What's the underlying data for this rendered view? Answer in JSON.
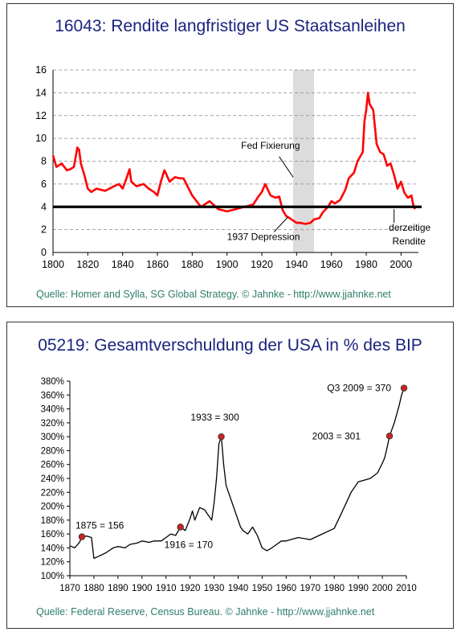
{
  "charts": [
    {
      "type": "line",
      "title": "16043: Rendite langfristiger US Staatsanleihen",
      "source": "Quelle: Homer and Sylla, SG Global Strategy. © Jahnke - http://www.jjahnke.net",
      "xlim": [
        1800,
        2010
      ],
      "ylim": [
        0,
        16
      ],
      "x_ticks": [
        "1800",
        "1820",
        "1840",
        "1860",
        "1880",
        "1900",
        "1920",
        "1940",
        "1960",
        "1980",
        "2000"
      ],
      "y_ticks": [
        "0",
        "2",
        "4",
        "6",
        "8",
        "10",
        "12",
        "14",
        "16"
      ],
      "grid": "dashed-horizontal",
      "line_color": "#ff0000",
      "reference_level": 4,
      "shaded_period": [
        1938,
        1950
      ],
      "annotations": [
        {
          "text": "Fed Fixierung",
          "x": 1925,
          "y": 9.1
        },
        {
          "text": "1937 Depression",
          "x": 1900,
          "y": 1.1
        },
        {
          "text": "derzeitige",
          "x": 1993,
          "y": 1.9
        },
        {
          "text": "Rendite",
          "x": 1995,
          "y": 0.7
        }
      ],
      "series": [
        {
          "x": [
            1800,
            1802,
            1805,
            1808,
            1810,
            1812,
            1814,
            1815,
            1816,
            1818,
            1820,
            1822,
            1825,
            1830,
            1835,
            1838,
            1840,
            1842,
            1844,
            1845,
            1848,
            1850,
            1852,
            1855,
            1858,
            1860,
            1862,
            1864,
            1865,
            1867,
            1870,
            1873,
            1875,
            1880,
            1885,
            1890,
            1895,
            1900,
            1905,
            1910,
            1915,
            1918,
            1920,
            1922,
            1925,
            1928,
            1930,
            1932,
            1934,
            1936,
            1938,
            1940,
            1942,
            1945,
            1948,
            1950,
            1953,
            1955,
            1958,
            1960,
            1962,
            1965,
            1968,
            1970,
            1973,
            1975,
            1978,
            1979,
            1980,
            1981,
            1982,
            1984,
            1986,
            1988,
            1990,
            1992,
            1994,
            1996,
            1998,
            2000,
            2002,
            2004,
            2006,
            2007,
            2008
          ],
          "y": [
            8.5,
            7.5,
            7.8,
            7.2,
            7.3,
            7.5,
            9.2,
            9.0,
            7.8,
            6.8,
            5.6,
            5.3,
            5.6,
            5.4,
            5.8,
            6.0,
            5.6,
            6.4,
            7.3,
            6.2,
            5.8,
            5.9,
            6.0,
            5.6,
            5.3,
            5.0,
            6.2,
            7.2,
            6.9,
            6.2,
            6.6,
            6.5,
            6.5,
            5.0,
            4.0,
            4.5,
            3.8,
            3.6,
            3.8,
            4.0,
            4.2,
            4.9,
            5.3,
            6.0,
            5.0,
            4.8,
            4.9,
            3.7,
            3.2,
            3.0,
            2.8,
            2.6,
            2.6,
            2.5,
            2.6,
            2.9,
            3.0,
            3.5,
            4.0,
            4.5,
            4.3,
            4.6,
            5.5,
            6.5,
            7.0,
            8.0,
            8.8,
            11.5,
            12.5,
            14.0,
            13.0,
            12.5,
            9.5,
            8.8,
            8.6,
            7.6,
            7.8,
            6.8,
            5.6,
            6.2,
            5.2,
            4.8,
            5.0,
            4.2,
            3.8
          ]
        }
      ]
    },
    {
      "type": "line",
      "title": "05219: Gesamtverschuldung der USA in % des BIP",
      "source": "Quelle: Federal Reserve, Census Bureau. © Jahnke - http://www.jjahnke.net",
      "xlim": [
        1870,
        2010
      ],
      "ylim": [
        100,
        380
      ],
      "x_ticks": [
        "1870",
        "1880",
        "1890",
        "1900",
        "1910",
        "1920",
        "1930",
        "1940",
        "1950",
        "1960",
        "1970",
        "1980",
        "1990",
        "2000",
        "2010"
      ],
      "y_ticks": [
        "100%",
        "120%",
        "140%",
        "160%",
        "180%",
        "200%",
        "220%",
        "240%",
        "260%",
        "280%",
        "300%",
        "320%",
        "340%",
        "360%",
        "380%"
      ],
      "line_color": "#000000",
      "marker_color": "#cc2222",
      "markers": [
        {
          "x": 1875,
          "y": 156,
          "label": "1875 = 156"
        },
        {
          "x": 1916,
          "y": 170,
          "label": "1916 = 170"
        },
        {
          "x": 1933,
          "y": 300,
          "label": "1933 = 300"
        },
        {
          "x": 2003,
          "y": 301,
          "label": "2003 = 301"
        },
        {
          "x": 2009,
          "y": 370,
          "label": "Q3 2009 = 370"
        }
      ],
      "series": [
        {
          "x": [
            1870,
            1872,
            1874,
            1875,
            1877,
            1879,
            1880,
            1882,
            1885,
            1888,
            1890,
            1893,
            1895,
            1898,
            1900,
            1903,
            1905,
            1908,
            1910,
            1912,
            1914,
            1916,
            1918,
            1920,
            1921,
            1922,
            1924,
            1926,
            1928,
            1929,
            1930,
            1931,
            1932,
            1933,
            1934,
            1935,
            1936,
            1938,
            1940,
            1941,
            1942,
            1944,
            1946,
            1948,
            1950,
            1952,
            1954,
            1956,
            1958,
            1960,
            1965,
            1970,
            1975,
            1980,
            1983,
            1985,
            1987,
            1990,
            1993,
            1995,
            1998,
            2000,
            2001,
            2002,
            2003,
            2005,
            2007,
            2008,
            2009
          ],
          "y": [
            143,
            140,
            148,
            156,
            157,
            155,
            125,
            128,
            133,
            140,
            142,
            140,
            145,
            147,
            150,
            148,
            150,
            150,
            155,
            160,
            158,
            170,
            165,
            182,
            193,
            180,
            198,
            195,
            185,
            180,
            205,
            240,
            290,
            300,
            260,
            230,
            220,
            200,
            180,
            170,
            165,
            160,
            170,
            158,
            140,
            136,
            140,
            145,
            150,
            150,
            155,
            152,
            160,
            168,
            190,
            205,
            220,
            235,
            238,
            240,
            248,
            262,
            270,
            285,
            301,
            320,
            345,
            360,
            370
          ]
        }
      ]
    }
  ]
}
